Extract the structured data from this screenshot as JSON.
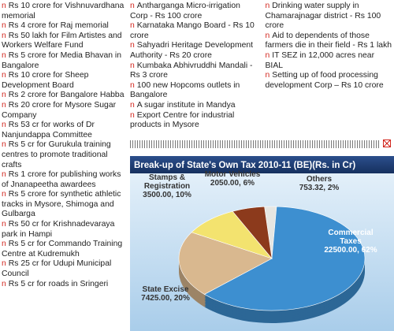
{
  "bullet": "n",
  "left_column": [
    "Rs 10 crore for Vishnuvardhana memorial",
    "Rs 4 crore for Raj memorial",
    "Rs 50 lakh for Film Artistes and Workers Welfare Fund",
    "Rs 5 crore for Media Bhavan in Bangalore",
    "Rs 10 crore for Sheep Development Board",
    "Rs 2 crore for Bangalore Habba",
    "Rs 20 crore for Mysore Sugar Company",
    "Rs 53 cr for works of Dr Nanjundappa Committee",
    "Rs 5 cr for Gurukula training centres to promote traditional crafts",
    "Rs 1 crore for publishing works of Jnanapeetha awardees",
    "Rs 5 crore for synthetic athletic tracks in Mysore, Shimoga and Gulbarga",
    "Rs 50 cr for Krishnadevaraya park in Hampi",
    "Rs 5 cr for Commando Training Centre at Kudremukh",
    "Rs 25 cr for Udupi Municipal Council",
    "Rs 5 cr for roads in Sringeri"
  ],
  "right_columns": [
    "Antharganga Micro-irrigation Corp - Rs 100 crore",
    "Karnataka Mango Board - Rs 10 crore",
    "Sahyadri Heritage Development Authority - Rs 20 crore",
    "Kumbaka Abhivruddhi Mandali - Rs 3 crore",
    "100 new Hopcoms outlets in Bangalore",
    "A sugar institute in Mandya",
    "Export Centre for industrial products in Mysore",
    "Drinking water supply in Chamarajnagar district - Rs 100 crore",
    "Aid to dependents of those farmers die in their field - Rs 1 lakh",
    "IT SEZ in 12,000 acres near BIAL",
    "Setting up of food processing development Corp – Rs 10 crore"
  ],
  "chart_data": {
    "type": "pie",
    "title": "Break-up of State's Own Tax 2010-11 (BE)(Rs. in Cr)",
    "categories": [
      "Others",
      "Commercial Taxes",
      "State Excise",
      "Stamps & Registration",
      "Motor Vehicles"
    ],
    "values": [
      753.32,
      22500,
      7425,
      3500,
      2050
    ],
    "value_labels": [
      "753.32, 2%",
      "22500.00, 62%",
      "7425.00, 20%",
      "3500.00, 10%",
      "2050.00, 6%"
    ],
    "colors": [
      "#e6e6e2",
      "#3d8fd0",
      "#d9b88f",
      "#f3e36f",
      "#8c3a1c"
    ]
  }
}
